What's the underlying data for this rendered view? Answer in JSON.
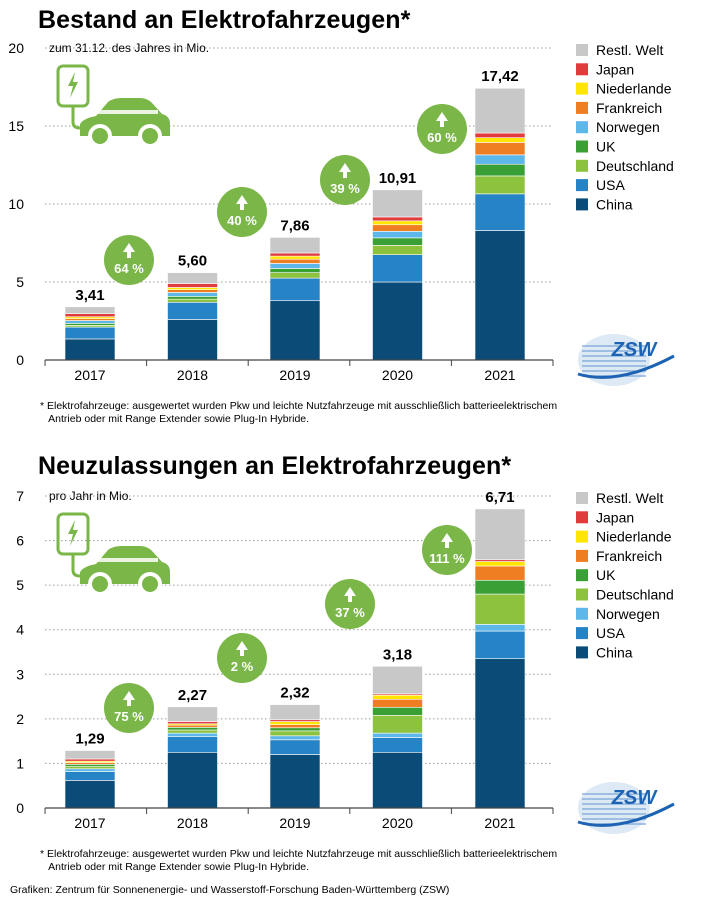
{
  "chart_data": [
    {
      "type": "bar",
      "stacked": true,
      "title": "Bestand an Elektrofahrzeugen*",
      "subtitle": "zum 31.12. des Jahres in Mio.",
      "categories": [
        "2017",
        "2018",
        "2019",
        "2020",
        "2021"
      ],
      "ylim": [
        0,
        20
      ],
      "yticks": [
        0,
        5,
        10,
        15,
        20
      ],
      "grid": true,
      "legend_position": "top-right",
      "totals": [
        3.41,
        5.6,
        7.86,
        10.91,
        17.42
      ],
      "total_labels": [
        "3,41",
        "5,60",
        "7,86",
        "10,91",
        "17,42"
      ],
      "growth_labels": [
        "64 %",
        "40 %",
        "39 %",
        "60 %"
      ],
      "series": [
        {
          "name": "China",
          "color": "#0b4b78",
          "values": [
            1.35,
            2.6,
            3.8,
            5.0,
            8.3
          ]
        },
        {
          "name": "USA",
          "color": "#2683c6",
          "values": [
            0.76,
            1.1,
            1.45,
            1.75,
            2.35
          ]
        },
        {
          "name": "Deutschland",
          "color": "#8dc23f",
          "values": [
            0.11,
            0.2,
            0.35,
            0.6,
            1.15
          ]
        },
        {
          "name": "UK",
          "color": "#3a9f35",
          "values": [
            0.13,
            0.18,
            0.27,
            0.48,
            0.75
          ]
        },
        {
          "name": "Norwegen",
          "color": "#5db7e8",
          "values": [
            0.18,
            0.25,
            0.32,
            0.42,
            0.6
          ]
        },
        {
          "name": "Frankreich",
          "color": "#ef7d22",
          "values": [
            0.12,
            0.18,
            0.27,
            0.42,
            0.8
          ]
        },
        {
          "name": "Niederlande",
          "color": "#ffe500",
          "values": [
            0.12,
            0.14,
            0.2,
            0.25,
            0.3
          ]
        },
        {
          "name": "Japan",
          "color": "#e03c3c",
          "values": [
            0.2,
            0.25,
            0.2,
            0.25,
            0.3
          ]
        },
        {
          "name": "Restl. Welt",
          "color": "#c8c8c8",
          "values": [
            0.44,
            0.7,
            1.0,
            1.74,
            2.87
          ]
        }
      ],
      "legend_order": [
        "Restl. Welt",
        "Japan",
        "Niederlande",
        "Frankreich",
        "Norwegen",
        "UK",
        "Deutschland",
        "USA",
        "China"
      ],
      "footnote_lines": [
        "* Elektrofahrzeuge: ausgewertet wurden Pkw und leichte Nutzfahrzeuge mit ausschließlich batterieelektrischem",
        "   Antrieb oder mit Range Extender sowie Plug-In Hybride."
      ],
      "logo_text": "ZSW"
    },
    {
      "type": "bar",
      "stacked": true,
      "title": "Neuzulassungen an Elektrofahrzeugen*",
      "subtitle": "pro Jahr in Mio.",
      "categories": [
        "2017",
        "2018",
        "2019",
        "2020",
        "2021"
      ],
      "ylim": [
        0,
        7
      ],
      "yticks": [
        0,
        1,
        2,
        3,
        4,
        5,
        6,
        7
      ],
      "grid": true,
      "legend_position": "top-right",
      "totals": [
        1.29,
        2.27,
        2.32,
        3.18,
        6.71
      ],
      "total_labels": [
        "1,29",
        "2,27",
        "2,32",
        "3,18",
        "6,71"
      ],
      "growth_labels": [
        "75 %",
        "2 %",
        "37 %",
        "111 %"
      ],
      "series": [
        {
          "name": "China",
          "color": "#0b4b78",
          "values": [
            0.62,
            1.25,
            1.2,
            1.25,
            3.35
          ]
        },
        {
          "name": "USA",
          "color": "#2683c6",
          "values": [
            0.2,
            0.35,
            0.33,
            0.33,
            0.62
          ]
        },
        {
          "name": "Norwegen",
          "color": "#5db7e8",
          "values": [
            0.06,
            0.08,
            0.09,
            0.1,
            0.15
          ]
        },
        {
          "name": "Deutschland",
          "color": "#8dc23f",
          "values": [
            0.05,
            0.07,
            0.11,
            0.4,
            0.68
          ]
        },
        {
          "name": "UK",
          "color": "#3a9f35",
          "values": [
            0.05,
            0.06,
            0.07,
            0.18,
            0.31
          ]
        },
        {
          "name": "Frankreich",
          "color": "#ef7d22",
          "values": [
            0.04,
            0.05,
            0.07,
            0.18,
            0.32
          ]
        },
        {
          "name": "Niederlande",
          "color": "#ffe500",
          "values": [
            0.03,
            0.03,
            0.07,
            0.09,
            0.1
          ]
        },
        {
          "name": "Japan",
          "color": "#e03c3c",
          "values": [
            0.05,
            0.05,
            0.04,
            0.03,
            0.04
          ]
        },
        {
          "name": "Restl. Welt",
          "color": "#c8c8c8",
          "values": [
            0.19,
            0.33,
            0.34,
            0.62,
            1.14
          ]
        }
      ],
      "legend_order": [
        "Restl. Welt",
        "Japan",
        "Niederlande",
        "Frankreich",
        "UK",
        "Deutschland",
        "Norwegen",
        "USA",
        "China"
      ],
      "footnote_lines": [
        "* Elektrofahrzeuge: ausgewertet wurden Pkw und leichte Nutzfahrzeuge mit ausschließlich batterieelektrischem",
        "   Antrieb oder mit Range Extender sowie Plug-In Hybride."
      ],
      "logo_text": "ZSW"
    }
  ],
  "credit": "Grafiken: Zentrum für Sonnenenergie- und Wasserstoff-Forschung Baden-Württemberg (ZSW)",
  "icon_name": "ev-charging-car-icon",
  "accent_green": "#7ab648"
}
